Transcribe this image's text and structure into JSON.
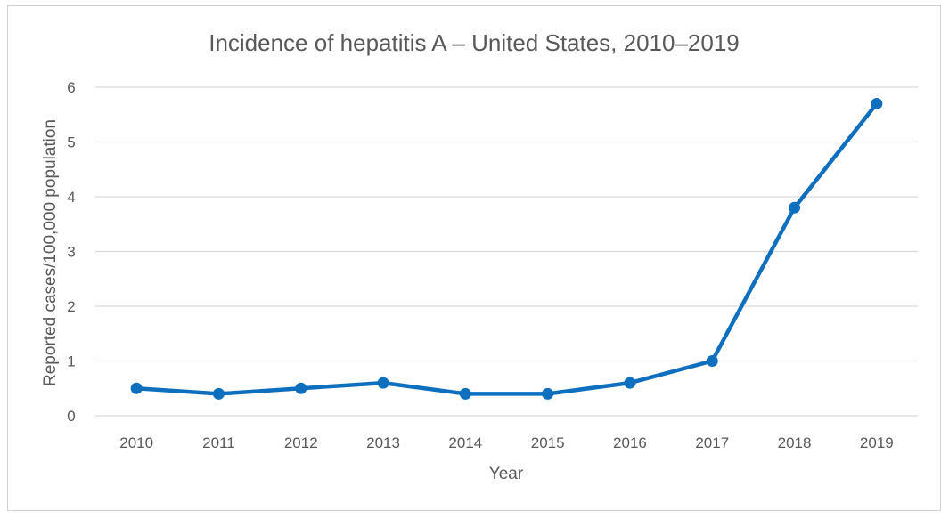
{
  "chart_data": {
    "type": "line",
    "title": "Incidence of hepatitis A – United States, 2010–2019",
    "xlabel": "Year",
    "ylabel": "Reported cases/100,000 population",
    "categories": [
      "2010",
      "2011",
      "2012",
      "2013",
      "2014",
      "2015",
      "2016",
      "2017",
      "2018",
      "2019"
    ],
    "series": [
      {
        "values": [
          0.5,
          0.4,
          0.5,
          0.6,
          0.4,
          0.4,
          0.6,
          1.0,
          3.8,
          5.7
        ]
      }
    ],
    "ylim": [
      0,
      6
    ],
    "yticks": [
      "0",
      "1",
      "2",
      "3",
      "4",
      "5",
      "6"
    ],
    "grid": "horizontal",
    "legend": "none",
    "colors": {
      "line": "#0F6FBF",
      "grid": "#D9D9D9",
      "text": "#595959",
      "frame": "#D0D0D0"
    }
  }
}
